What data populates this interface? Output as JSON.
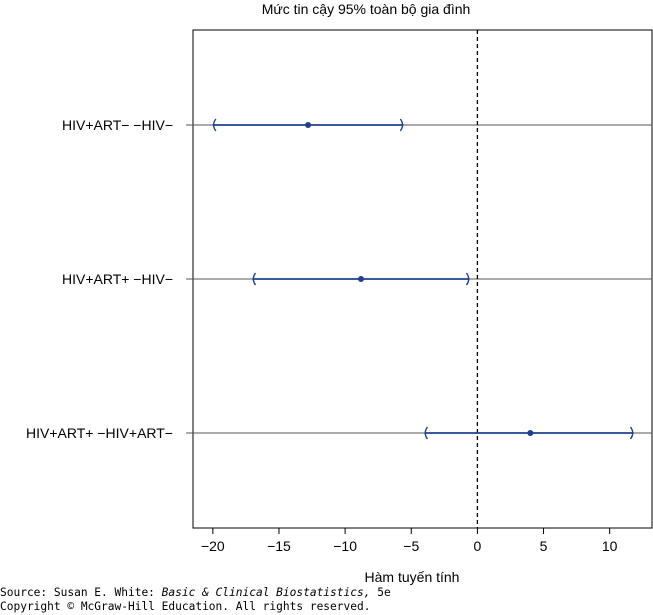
{
  "chart_data": {
    "type": "interval",
    "title": "Mức tin cậy 95% toàn bộ gia đình",
    "xlabel": "Hàm tuyến tính",
    "ylabel": "",
    "xlim": [
      -21.5,
      13.2
    ],
    "xticks": [
      -20,
      -15,
      -10,
      -5,
      0,
      5,
      10
    ],
    "xtick_labels": [
      "−20",
      "−15",
      "−10",
      "−5",
      "0",
      "5",
      "10"
    ],
    "reference_line": 0,
    "grid": false,
    "color": "#1f3f8f",
    "comparisons": [
      {
        "label": "HIV+ART− −HIV−",
        "estimate": -12.8,
        "lower": -20.0,
        "upper": -5.6
      },
      {
        "label": "HIV+ART+ −HIV−",
        "estimate": -8.8,
        "lower": -17.0,
        "upper": -0.6
      },
      {
        "label": "HIV+ART+ −HIV+ART−",
        "estimate": 4.0,
        "lower": -4.0,
        "upper": 11.8
      }
    ]
  },
  "source": {
    "prefix": "Source: Susan E. White: ",
    "book": "Basic & Clinical Biostatistics,",
    "edition": " 5e",
    "copyright": "Copyright © McGraw-Hill Education. All rights reserved."
  }
}
